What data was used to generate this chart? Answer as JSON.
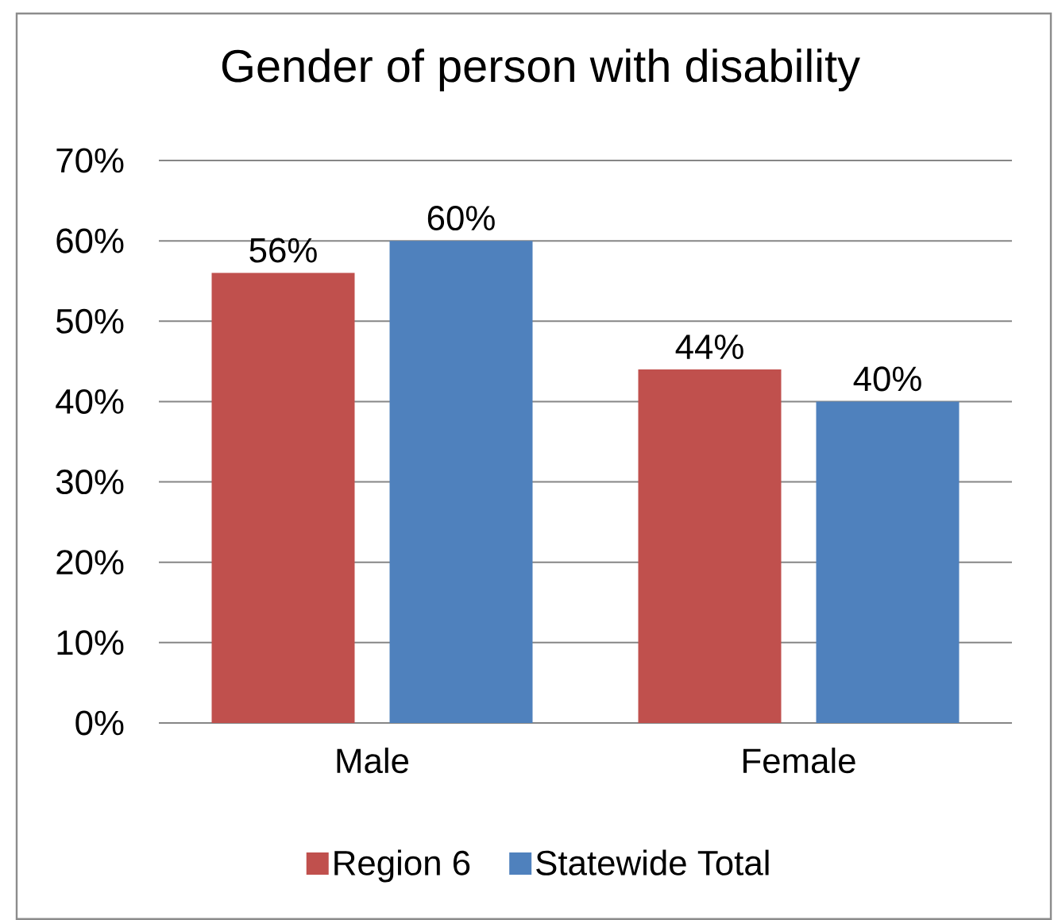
{
  "chart_data": {
    "type": "bar",
    "title": "Gender of person with disability",
    "categories": [
      "Male",
      "Female"
    ],
    "series": [
      {
        "name": "Region 6",
        "color": "#c0504d",
        "values": [
          56,
          44
        ],
        "value_labels": [
          "56%",
          "44%"
        ]
      },
      {
        "name": "Statewide Total",
        "color": "#4f81bd",
        "values": [
          60,
          40
        ],
        "value_labels": [
          "60%",
          "40%"
        ]
      }
    ],
    "ylim": [
      0,
      70
    ],
    "yticks": [
      {
        "value": 0,
        "label": "0%"
      },
      {
        "value": 10,
        "label": "10%"
      },
      {
        "value": 20,
        "label": "20%"
      },
      {
        "value": 30,
        "label": "30%"
      },
      {
        "value": 40,
        "label": "40%"
      },
      {
        "value": 50,
        "label": "50%"
      },
      {
        "value": 60,
        "label": "60%"
      },
      {
        "value": 70,
        "label": "70%"
      }
    ],
    "grid": "y",
    "legend": "bottom"
  }
}
